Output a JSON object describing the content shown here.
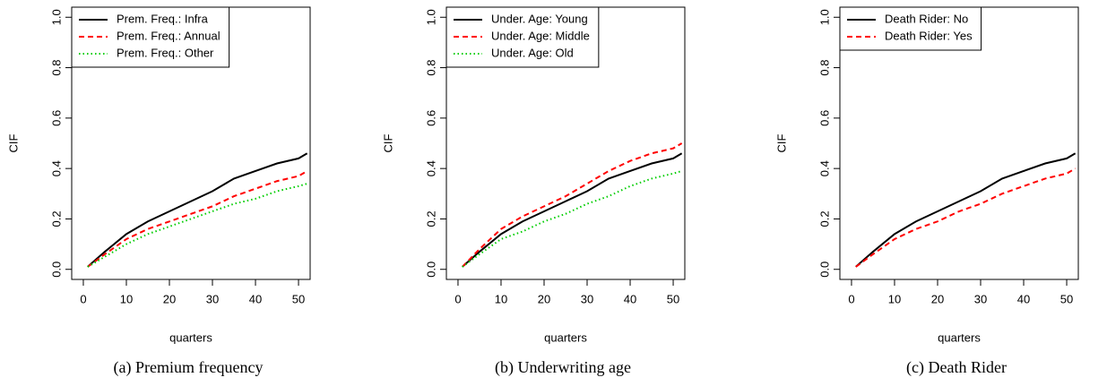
{
  "chart_data": [
    {
      "type": "line",
      "caption": "(a) Premium frequency",
      "xlabel": "quarters",
      "ylabel": "CIF",
      "x": [
        1,
        5,
        10,
        15,
        20,
        25,
        30,
        35,
        40,
        45,
        50,
        52
      ],
      "series": [
        {
          "name": "Prem. Freq.: Infra",
          "color": "#000000",
          "linestyle": "solid",
          "values": [
            0.01,
            0.07,
            0.14,
            0.19,
            0.23,
            0.27,
            0.31,
            0.36,
            0.39,
            0.42,
            0.44,
            0.46
          ]
        },
        {
          "name": "Prem. Freq.: Annual",
          "color": "#ff0000",
          "linestyle": "dashed",
          "values": [
            0.01,
            0.06,
            0.12,
            0.16,
            0.19,
            0.22,
            0.25,
            0.29,
            0.32,
            0.35,
            0.37,
            0.39
          ]
        },
        {
          "name": "Prem. Freq.: Other",
          "color": "#00cd00",
          "linestyle": "dotted",
          "values": [
            0.01,
            0.05,
            0.1,
            0.14,
            0.17,
            0.2,
            0.23,
            0.26,
            0.28,
            0.31,
            0.33,
            0.34
          ]
        }
      ],
      "xlim": [
        -2.7,
        52.7
      ],
      "xticks": [
        0,
        10,
        20,
        30,
        40,
        50
      ],
      "ylim": [
        -0.04,
        1.04
      ],
      "yticks": [
        {
          "value": 0,
          "label": "0.0"
        },
        {
          "value": 0.2,
          "label": "0.2"
        },
        {
          "value": 0.4,
          "label": "0.4"
        },
        {
          "value": 0.6,
          "label": "0.6"
        },
        {
          "value": 0.8,
          "label": "0.8"
        },
        {
          "value": 1,
          "label": "1.0"
        }
      ],
      "legend": "top-left"
    },
    {
      "type": "line",
      "caption": "(b) Underwriting age",
      "xlabel": "quarters",
      "ylabel": "CIF",
      "x": [
        1,
        5,
        10,
        15,
        20,
        25,
        30,
        35,
        40,
        45,
        50,
        52
      ],
      "series": [
        {
          "name": "Under. Age: Young",
          "color": "#000000",
          "linestyle": "solid",
          "values": [
            0.01,
            0.07,
            0.14,
            0.19,
            0.23,
            0.27,
            0.31,
            0.36,
            0.39,
            0.42,
            0.44,
            0.46
          ]
        },
        {
          "name": "Under. Age: Middle",
          "color": "#ff0000",
          "linestyle": "dashed",
          "values": [
            0.01,
            0.08,
            0.16,
            0.21,
            0.25,
            0.29,
            0.34,
            0.39,
            0.43,
            0.46,
            0.48,
            0.5
          ]
        },
        {
          "name": "Under. Age: Old",
          "color": "#00cd00",
          "linestyle": "dotted",
          "values": [
            0.01,
            0.06,
            0.12,
            0.15,
            0.19,
            0.22,
            0.26,
            0.29,
            0.33,
            0.36,
            0.38,
            0.39
          ]
        }
      ],
      "xlim": [
        -2.7,
        52.7
      ],
      "xticks": [
        0,
        10,
        20,
        30,
        40,
        50
      ],
      "ylim": [
        -0.04,
        1.04
      ],
      "yticks": [
        {
          "value": 0,
          "label": "0.0"
        },
        {
          "value": 0.2,
          "label": "0.2"
        },
        {
          "value": 0.4,
          "label": "0.4"
        },
        {
          "value": 0.6,
          "label": "0.6"
        },
        {
          "value": 0.8,
          "label": "0.8"
        },
        {
          "value": 1,
          "label": "1.0"
        }
      ],
      "legend": "top-left"
    },
    {
      "type": "line",
      "caption": "(c) Death Rider",
      "xlabel": "quarters",
      "ylabel": "CIF",
      "x": [
        1,
        5,
        10,
        15,
        20,
        25,
        30,
        35,
        40,
        45,
        50,
        52
      ],
      "series": [
        {
          "name": "Death Rider: No",
          "color": "#000000",
          "linestyle": "solid",
          "values": [
            0.01,
            0.07,
            0.14,
            0.19,
            0.23,
            0.27,
            0.31,
            0.36,
            0.39,
            0.42,
            0.44,
            0.46
          ]
        },
        {
          "name": "Death Rider: Yes",
          "color": "#ff0000",
          "linestyle": "dashed",
          "values": [
            0.01,
            0.06,
            0.12,
            0.16,
            0.19,
            0.23,
            0.26,
            0.3,
            0.33,
            0.36,
            0.38,
            0.4
          ]
        }
      ],
      "xlim": [
        -2.7,
        52.7
      ],
      "xticks": [
        0,
        10,
        20,
        30,
        40,
        50
      ],
      "ylim": [
        -0.04,
        1.04
      ],
      "yticks": [
        {
          "value": 0,
          "label": "0.0"
        },
        {
          "value": 0.2,
          "label": "0.2"
        },
        {
          "value": 0.4,
          "label": "0.4"
        },
        {
          "value": 0.6,
          "label": "0.6"
        },
        {
          "value": 0.8,
          "label": "0.8"
        },
        {
          "value": 1,
          "label": "1.0"
        }
      ],
      "legend": "top-left"
    }
  ]
}
